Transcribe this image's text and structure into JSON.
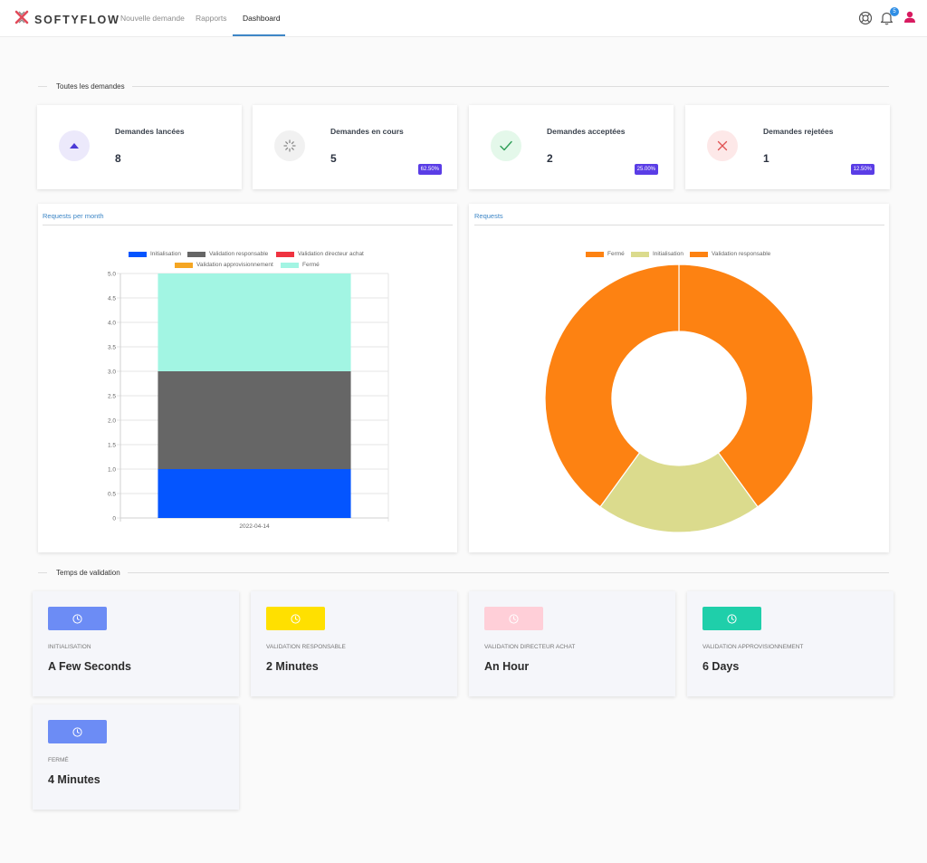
{
  "app": {
    "brand": "SOFTYFLOW"
  },
  "nav": [
    {
      "label": "Nouvelle demande",
      "active": false
    },
    {
      "label": "Rapports",
      "active": false
    },
    {
      "label": "Dashboard",
      "active": true
    }
  ],
  "header": {
    "notification_count": "5"
  },
  "sections": {
    "demandes": "Toutes les demandes",
    "validation": "Temps de validation"
  },
  "stats": [
    {
      "label": "Demandes lancées",
      "value": "8",
      "percent": "",
      "icon": "triangle-up-icon",
      "bg": "#ece9fb",
      "fg": "#4b3ad6"
    },
    {
      "label": "Demandes en cours",
      "value": "5",
      "percent": "62.50%",
      "icon": "loader-icon",
      "bg": "#f1f1f1",
      "fg": "#8a8a8a"
    },
    {
      "label": "Demandes acceptées",
      "value": "2",
      "percent": "25.00%",
      "icon": "check-icon",
      "bg": "#e4f8ea",
      "fg": "#2e9e57"
    },
    {
      "label": "Demandes rejetées",
      "value": "1",
      "percent": "12.50%",
      "icon": "x-icon",
      "bg": "#fde8e8",
      "fg": "#e05353"
    }
  ],
  "charts": {
    "bar_tab": "Requests per month",
    "donut_tab": "Requests"
  },
  "chart_data": [
    {
      "type": "bar",
      "stacked": true,
      "categories": [
        "2022-04-14"
      ],
      "series": [
        {
          "name": "Initialisation",
          "values": [
            1
          ],
          "color": "#0455ff"
        },
        {
          "name": "Validation responsable",
          "values": [
            2
          ],
          "color": "#666666"
        },
        {
          "name": "Validation directeur achat",
          "values": [
            0
          ],
          "color": "#ef3340"
        },
        {
          "name": "Validation approvisionnement",
          "values": [
            0
          ],
          "color": "#f5a623"
        },
        {
          "name": "Fermé",
          "values": [
            2
          ],
          "color": "#a2f5e3"
        }
      ],
      "ylim": [
        0,
        5
      ],
      "yticks": [
        "0",
        "0.5",
        "1.0",
        "1.5",
        "2.0",
        "2.5",
        "3.0",
        "3.5",
        "4.0",
        "4.5",
        "5.0"
      ],
      "grid": true,
      "legend": "top"
    },
    {
      "type": "pie",
      "donut": true,
      "labels": [
        "Fermé",
        "Initialisation",
        "Validation responsable"
      ],
      "values": [
        2,
        1,
        2
      ],
      "colors": [
        "#fd8212",
        "#dbdb8d",
        "#fd8212"
      ],
      "legend": "top"
    }
  ],
  "validation_times": [
    {
      "label": "Initialisation",
      "value": "A Few Seconds",
      "color": "#6c8cf5"
    },
    {
      "label": "Validation responsable",
      "value": "2 Minutes",
      "color": "#ffe000"
    },
    {
      "label": "Validation directeur achat",
      "value": "An Hour",
      "color": "#ffcfd8"
    },
    {
      "label": "Validation approvisionnement",
      "value": "6 Days",
      "color": "#1fcfaa"
    },
    {
      "label": "Fermé",
      "value": "4 Minutes",
      "color": "#6c8cf5"
    }
  ]
}
